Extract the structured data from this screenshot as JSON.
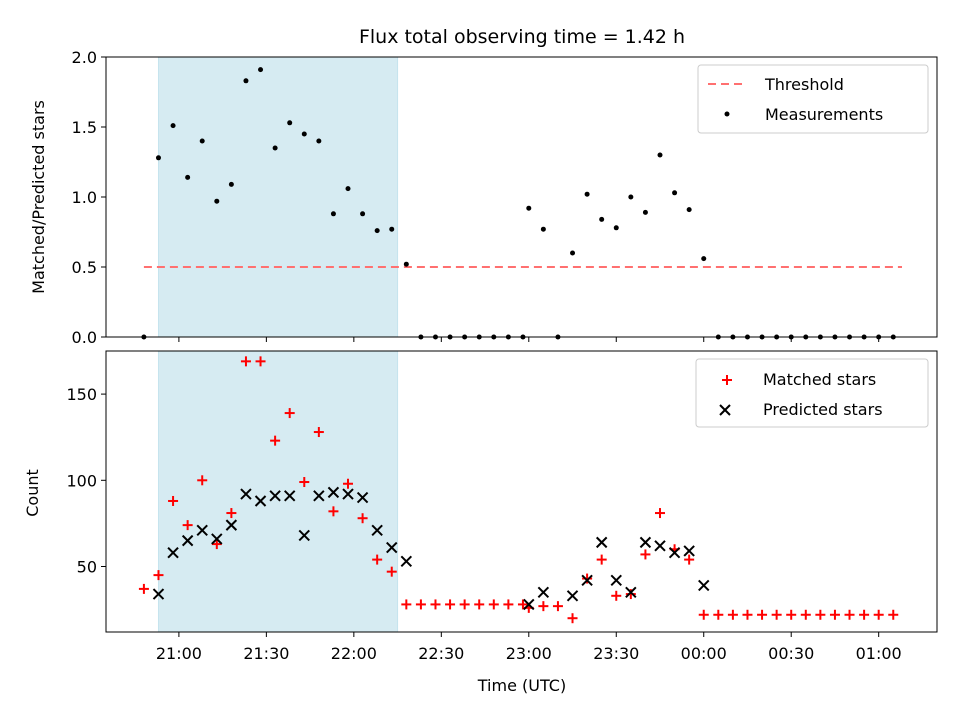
{
  "chart_data": [
    {
      "type": "scatter",
      "title": "Flux total observing time = 1.42 h",
      "xlabel": "",
      "ylabel": "Matched/Predicted stars",
      "x_unit": "time (UTC)",
      "xlim": [
        "20:35",
        "01:20"
      ],
      "ylim": [
        0,
        2.0
      ],
      "y_ticks": [
        "0.0",
        "0.5",
        "1.0",
        "1.5",
        "2.0"
      ],
      "shaded_interval": {
        "start": "20:53",
        "end": "22:15",
        "color": "#add8e6"
      },
      "threshold": {
        "name": "Threshold",
        "value": 0.5,
        "x_range": [
          "20:48",
          "01:08"
        ],
        "color": "#ff7070"
      },
      "legend": [
        "Threshold",
        "Measurements"
      ],
      "legend_position": "upper-right",
      "series": [
        {
          "name": "Measurements",
          "color": "#000000",
          "points": [
            [
              "20:48",
              0.0
            ],
            [
              "20:53",
              1.28
            ],
            [
              "20:58",
              1.51
            ],
            [
              "21:03",
              1.14
            ],
            [
              "21:08",
              1.4
            ],
            [
              "21:13",
              0.97
            ],
            [
              "21:18",
              1.09
            ],
            [
              "21:23",
              1.83
            ],
            [
              "21:28",
              1.91
            ],
            [
              "21:33",
              1.35
            ],
            [
              "21:38",
              1.53
            ],
            [
              "21:43",
              1.45
            ],
            [
              "21:48",
              1.4
            ],
            [
              "21:53",
              0.88
            ],
            [
              "21:58",
              1.06
            ],
            [
              "22:03",
              0.88
            ],
            [
              "22:08",
              0.76
            ],
            [
              "22:13",
              0.77
            ],
            [
              "22:18",
              0.52
            ],
            [
              "22:23",
              0.0
            ],
            [
              "22:28",
              0.0
            ],
            [
              "22:33",
              0.0
            ],
            [
              "22:38",
              0.0
            ],
            [
              "22:43",
              0.0
            ],
            [
              "22:48",
              0.0
            ],
            [
              "22:53",
              0.0
            ],
            [
              "22:58",
              0.0
            ],
            [
              "23:00",
              0.92
            ],
            [
              "23:05",
              0.77
            ],
            [
              "23:10",
              0.0
            ],
            [
              "23:15",
              0.6
            ],
            [
              "23:20",
              1.02
            ],
            [
              "23:25",
              0.84
            ],
            [
              "23:30",
              0.78
            ],
            [
              "23:35",
              1.0
            ],
            [
              "23:40",
              0.89
            ],
            [
              "23:45",
              1.3
            ],
            [
              "23:50",
              1.03
            ],
            [
              "23:55",
              0.91
            ],
            [
              "00:00",
              0.56
            ],
            [
              "00:05",
              0.0
            ],
            [
              "00:10",
              0.0
            ],
            [
              "00:15",
              0.0
            ],
            [
              "00:20",
              0.0
            ],
            [
              "00:25",
              0.0
            ],
            [
              "00:30",
              0.0
            ],
            [
              "00:35",
              0.0
            ],
            [
              "00:40",
              0.0
            ],
            [
              "00:45",
              0.0
            ],
            [
              "00:50",
              0.0
            ],
            [
              "00:55",
              0.0
            ],
            [
              "01:00",
              0.0
            ],
            [
              "01:05",
              0.0
            ]
          ]
        }
      ]
    },
    {
      "type": "scatter",
      "title": "",
      "xlabel": "Time (UTC)",
      "ylabel": "Count",
      "xlim": [
        "20:35",
        "01:20"
      ],
      "ylim": [
        12,
        175
      ],
      "x_ticks": [
        "21:00",
        "21:30",
        "22:00",
        "22:30",
        "23:00",
        "23:30",
        "00:00",
        "00:30",
        "01:00"
      ],
      "y_ticks": [
        "50",
        "100",
        "150"
      ],
      "shaded_interval": {
        "start": "20:53",
        "end": "22:15",
        "color": "#add8e6"
      },
      "legend": [
        "Matched stars",
        "Predicted stars"
      ],
      "legend_position": "upper-right",
      "series": [
        {
          "name": "Matched stars",
          "marker": "plus",
          "color": "#ff0000",
          "points": [
            [
              "20:48",
              37
            ],
            [
              "20:53",
              45
            ],
            [
              "20:58",
              88
            ],
            [
              "21:03",
              74
            ],
            [
              "21:08",
              100
            ],
            [
              "21:13",
              63
            ],
            [
              "21:18",
              81
            ],
            [
              "21:23",
              169
            ],
            [
              "21:28",
              169
            ],
            [
              "21:33",
              123
            ],
            [
              "21:38",
              139
            ],
            [
              "21:43",
              99
            ],
            [
              "21:48",
              128
            ],
            [
              "21:53",
              82
            ],
            [
              "21:58",
              98
            ],
            [
              "22:03",
              78
            ],
            [
              "22:08",
              54
            ],
            [
              "22:13",
              47
            ],
            [
              "22:18",
              28
            ],
            [
              "22:23",
              28
            ],
            [
              "22:28",
              28
            ],
            [
              "22:33",
              28
            ],
            [
              "22:38",
              28
            ],
            [
              "22:43",
              28
            ],
            [
              "22:48",
              28
            ],
            [
              "22:53",
              28
            ],
            [
              "22:58",
              28
            ],
            [
              "23:00",
              26
            ],
            [
              "23:05",
              27
            ],
            [
              "23:10",
              27
            ],
            [
              "23:15",
              20
            ],
            [
              "23:20",
              43
            ],
            [
              "23:25",
              54
            ],
            [
              "23:30",
              33
            ],
            [
              "23:35",
              34
            ],
            [
              "23:40",
              57
            ],
            [
              "23:45",
              81
            ],
            [
              "23:50",
              60
            ],
            [
              "23:55",
              54
            ],
            [
              "00:00",
              22
            ],
            [
              "00:05",
              22
            ],
            [
              "00:10",
              22
            ],
            [
              "00:15",
              22
            ],
            [
              "00:20",
              22
            ],
            [
              "00:25",
              22
            ],
            [
              "00:30",
              22
            ],
            [
              "00:35",
              22
            ],
            [
              "00:40",
              22
            ],
            [
              "00:45",
              22
            ],
            [
              "00:50",
              22
            ],
            [
              "00:55",
              22
            ],
            [
              "01:00",
              22
            ],
            [
              "01:05",
              22
            ]
          ]
        },
        {
          "name": "Predicted stars",
          "marker": "x",
          "color": "#000000",
          "points": [
            [
              "20:53",
              34
            ],
            [
              "20:58",
              58
            ],
            [
              "21:03",
              65
            ],
            [
              "21:08",
              71
            ],
            [
              "21:13",
              66
            ],
            [
              "21:18",
              74
            ],
            [
              "21:23",
              92
            ],
            [
              "21:28",
              88
            ],
            [
              "21:33",
              91
            ],
            [
              "21:38",
              91
            ],
            [
              "21:43",
              68
            ],
            [
              "21:48",
              91
            ],
            [
              "21:53",
              93
            ],
            [
              "21:58",
              92
            ],
            [
              "22:03",
              90
            ],
            [
              "22:08",
              71
            ],
            [
              "22:13",
              61
            ],
            [
              "22:18",
              53
            ],
            [
              "23:00",
              28
            ],
            [
              "23:05",
              35
            ],
            [
              "23:15",
              33
            ],
            [
              "23:20",
              42
            ],
            [
              "23:25",
              64
            ],
            [
              "23:30",
              42
            ],
            [
              "23:35",
              35
            ],
            [
              "23:40",
              64
            ],
            [
              "23:45",
              62
            ],
            [
              "23:50",
              58
            ],
            [
              "23:55",
              59
            ],
            [
              "00:00",
              39
            ]
          ]
        }
      ]
    }
  ]
}
